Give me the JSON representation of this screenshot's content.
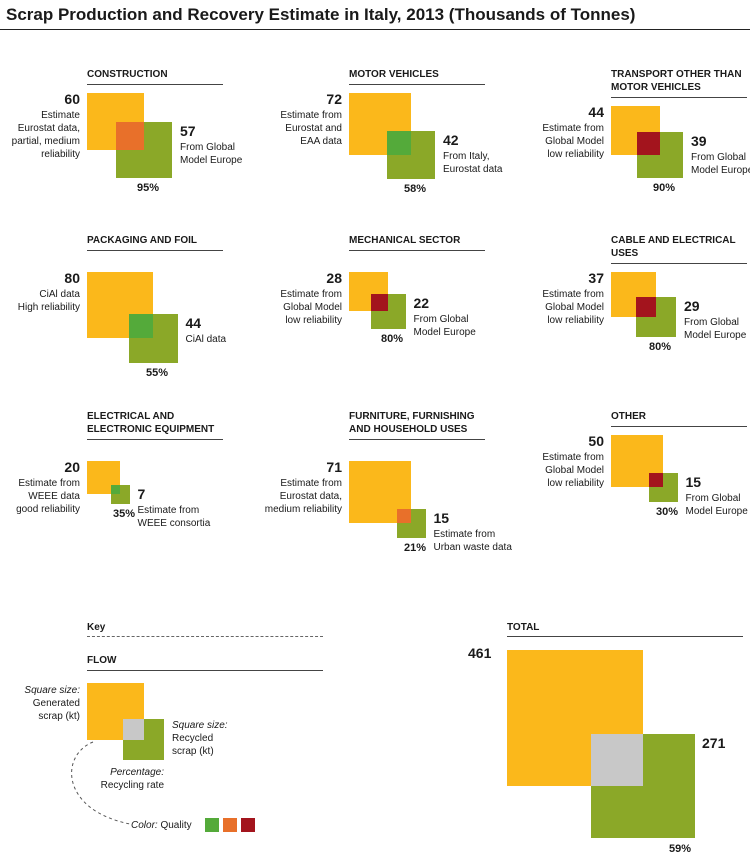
{
  "title": "Scrap Production and Recovery Estimate in Italy, 2013 (Thousands of Tonnes)",
  "colors": {
    "generated": "#FBB81B",
    "recycled": "#8BA828",
    "quality_high": "#54AA3A",
    "quality_medium": "#E8702A",
    "quality_low": "#A3141D",
    "overlap_key": "#C8C8C8"
  },
  "chart_data": {
    "type": "proportional-square-overlap",
    "unit": "kt",
    "categories": [
      {
        "name": "CONSTRUCTION",
        "generated": 60,
        "generated_note": "Estimate\nEurostat data,\npartial, medium\nreliability",
        "recycled": 57,
        "recycled_note": "From Global\nModel Europe",
        "rate": "95%",
        "quality": "medium"
      },
      {
        "name": "MOTOR VEHICLES",
        "generated": 72,
        "generated_note": "Estimate from\nEurostat and\nEAA data",
        "recycled": 42,
        "recycled_note": "From Italy,\nEurostat data",
        "rate": "58%",
        "quality": "high"
      },
      {
        "name": "TRANSPORT OTHER THAN MOTOR VEHICLES",
        "generated": 44,
        "generated_note": "Estimate from\nGlobal Model\nlow reliability",
        "recycled": 39,
        "recycled_note": "From Global\nModel Europe",
        "rate": "90%",
        "quality": "low"
      },
      {
        "name": "PACKAGING AND FOIL",
        "generated": 80,
        "generated_note": "CiAl data\nHigh reliability",
        "recycled": 44,
        "recycled_note": "CiAl data",
        "rate": "55%",
        "quality": "high"
      },
      {
        "name": "MECHANICAL SECTOR",
        "generated": 28,
        "generated_note": "Estimate from\nGlobal Model\nlow reliability",
        "recycled": 22,
        "recycled_note": "From Global\nModel Europe",
        "rate": "80%",
        "quality": "low"
      },
      {
        "name": "CABLE AND ELECTRICAL USES",
        "generated": 37,
        "generated_note": "Estimate from\nGlobal Model\nlow reliability",
        "recycled": 29,
        "recycled_note": "From Global\nModel Europe",
        "rate": "80%",
        "quality": "low"
      },
      {
        "name": "ELECTRICAL AND ELECTRONIC EQUIPMENT",
        "generated": 20,
        "generated_note": "Estimate from\nWEEE data\ngood reliability",
        "recycled": 7,
        "recycled_note": "Estimate from\nWEEE consortia",
        "rate": "35%",
        "quality": "high"
      },
      {
        "name": "FURNITURE, FURNISHING AND HOUSEHOLD USES",
        "generated": 71,
        "generated_note": "Estimate from\nEurostat data,\nmedium reliability",
        "recycled": 15,
        "recycled_note": "Estimate from\nUrban waste data",
        "rate": "21%",
        "quality": "medium"
      },
      {
        "name": "OTHER",
        "generated": 50,
        "generated_note": "Estimate from\nGlobal Model\nlow reliability",
        "recycled": 15,
        "recycled_note": "From Global\nModel Europe",
        "rate": "30%",
        "quality": "low"
      }
    ],
    "total": {
      "name": "TOTAL",
      "generated": 461,
      "recycled": 271,
      "rate": "59%"
    }
  },
  "key": {
    "header": "Key",
    "flow": "FLOW",
    "gen_label_italic": "Square size:",
    "gen_label_rest": "Generated scrap (kt)",
    "rec_label_italic": "Square size:",
    "rec_label_rest": "Recycled scrap (kt)",
    "pct_label_italic": "Percentage:",
    "pct_label_rest": "Recycling rate",
    "color_label_italic": "Color:",
    "color_label_rest": "Quality"
  }
}
